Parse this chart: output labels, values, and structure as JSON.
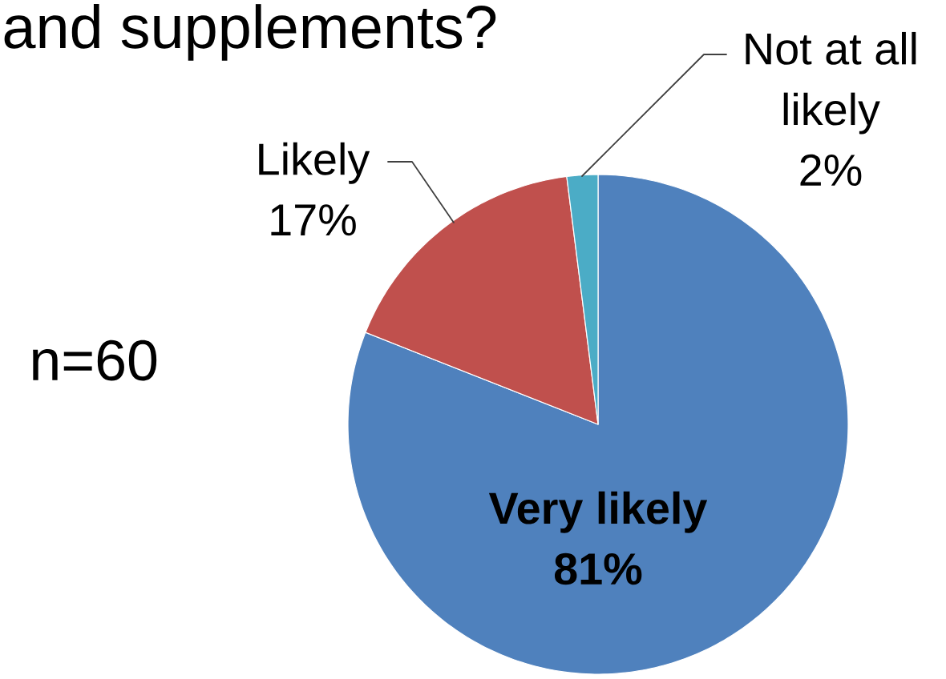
{
  "chart_data": {
    "type": "pie",
    "title": "and supplements?",
    "categories": [
      "Very likely",
      "Likely",
      "Not at all likely"
    ],
    "values": [
      81,
      17,
      2
    ],
    "colors": [
      "#4f81bd",
      "#c0504d",
      "#4bacc6"
    ],
    "value_labels": [
      "81%",
      "17%",
      "2%"
    ],
    "annotations": [
      "n=60"
    ]
  }
}
